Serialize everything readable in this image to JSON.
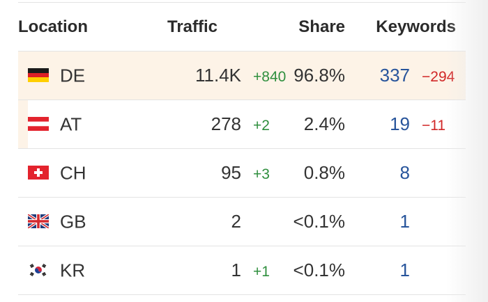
{
  "header": {
    "location": "Location",
    "traffic": "Traffic",
    "share": "Share",
    "keywords": "Keywords"
  },
  "rows": [
    {
      "flag_icon": "germany-flag-icon",
      "code": "DE",
      "traffic": "11.4K",
      "traffic_delta": "+840",
      "share": "96.8%",
      "keywords": "337",
      "keywords_delta": "−294"
    },
    {
      "flag_icon": "austria-flag-icon",
      "code": "AT",
      "traffic": "278",
      "traffic_delta": "+2",
      "share": "2.4%",
      "keywords": "19",
      "keywords_delta": "−11"
    },
    {
      "flag_icon": "switzerland-flag-icon",
      "code": "CH",
      "traffic": "95",
      "traffic_delta": "+3",
      "share": "0.8%",
      "keywords": "8",
      "keywords_delta": ""
    },
    {
      "flag_icon": "uk-flag-icon",
      "code": "GB",
      "traffic": "2",
      "traffic_delta": "",
      "share": "<0.1%",
      "keywords": "1",
      "keywords_delta": ""
    },
    {
      "flag_icon": "south-korea-flag-icon",
      "code": "KR",
      "traffic": "1",
      "traffic_delta": "+1",
      "share": "<0.1%",
      "keywords": "1",
      "keywords_delta": ""
    }
  ],
  "colors": {
    "positive": "#2f8f3e",
    "negative": "#d12727",
    "link": "#27549b",
    "highlight": "#fdf3e7"
  }
}
